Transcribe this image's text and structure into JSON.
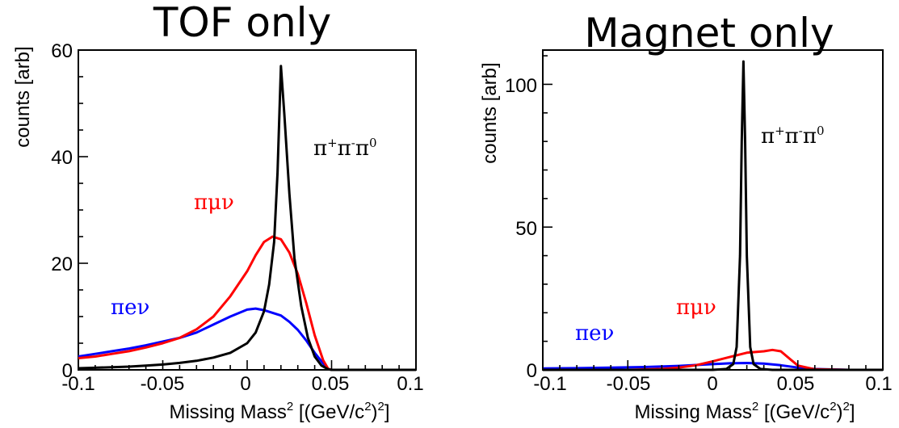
{
  "charts": [
    {
      "id": "tof",
      "title": "TOF only",
      "xlabel_main": "Missing Mass",
      "xlabel_sup": "2",
      "xlabel_rest": " [(GeV/c",
      "xlabel_sup2": "2",
      "xlabel_end": ")",
      "xlabel_sup3": "2",
      "xlabel_close": "]",
      "ylabel": "counts [arb]",
      "xticks": [
        "-0.1",
        "-0.05",
        "0",
        "0.05",
        "0.1"
      ],
      "yticks": [
        "0",
        "20",
        "40",
        "60"
      ],
      "annotations": {
        "pipipi": {
          "base": "π",
          "s1": "+",
          "mid1": "π",
          "s2": "-",
          "mid2": "π",
          "s3": "0"
        },
        "pimunu": "πμν",
        "pienu": "πeν"
      }
    },
    {
      "id": "magnet",
      "title": "Magnet only",
      "xlabel_main": "Missing Mass",
      "xlabel_sup": "2",
      "xlabel_rest": " [(GeV/c",
      "xlabel_sup2": "2",
      "xlabel_end": ")",
      "xlabel_sup3": "2",
      "xlabel_close": "]",
      "ylabel": "counts [arb]",
      "xticks": [
        "-0.1",
        "-0.05",
        "0",
        "0.05",
        "0.1"
      ],
      "yticks": [
        "0",
        "50",
        "100"
      ],
      "annotations": {
        "pipipi": {
          "base": "π",
          "s1": "+",
          "mid1": "π",
          "s2": "-",
          "mid2": "π",
          "s3": "0"
        },
        "pimunu": "πμν",
        "pienu": "πeν"
      }
    }
  ],
  "colors": {
    "pipipi": "#000000",
    "pimunu": "#ff0000",
    "pienu": "#0000ff"
  },
  "chart_data": [
    {
      "type": "line",
      "title": "TOF only",
      "xlabel": "Missing Mass² [(GeV/c²)²]",
      "ylabel": "counts [arb]",
      "xlim": [
        -0.1,
        0.1
      ],
      "ylim": [
        0,
        60
      ],
      "grid": false,
      "series": [
        {
          "name": "π+π-π0",
          "color": "#000000",
          "x": [
            -0.1,
            -0.09,
            -0.08,
            -0.07,
            -0.06,
            -0.05,
            -0.04,
            -0.03,
            -0.02,
            -0.01,
            0.0,
            0.005,
            0.01,
            0.013,
            0.016,
            0.018,
            0.02,
            0.022,
            0.025,
            0.028,
            0.032,
            0.036,
            0.04,
            0.044,
            0.048,
            0.05,
            0.06,
            0.08,
            0.1
          ],
          "y": [
            0.3,
            0.4,
            0.5,
            0.6,
            0.8,
            1.0,
            1.3,
            1.7,
            2.3,
            3.2,
            5.0,
            7.0,
            11.0,
            16.0,
            24.0,
            37.0,
            57.0,
            48.0,
            33.0,
            21.0,
            12.0,
            6.0,
            2.5,
            0.8,
            0.1,
            0,
            0,
            0,
            0
          ]
        },
        {
          "name": "πμν",
          "color": "#ff0000",
          "x": [
            -0.1,
            -0.09,
            -0.08,
            -0.07,
            -0.06,
            -0.05,
            -0.04,
            -0.03,
            -0.02,
            -0.01,
            0.0,
            0.005,
            0.01,
            0.015,
            0.02,
            0.025,
            0.03,
            0.035,
            0.04,
            0.045,
            0.048,
            0.05,
            0.06,
            0.08,
            0.1
          ],
          "y": [
            2.2,
            2.5,
            3.0,
            3.5,
            4.2,
            5.0,
            6.0,
            7.6,
            10.0,
            13.8,
            18.5,
            21.5,
            24.0,
            25.0,
            24.5,
            22.0,
            18.0,
            12.5,
            6.5,
            1.8,
            0.2,
            0,
            0,
            0,
            0
          ]
        },
        {
          "name": "πeν",
          "color": "#0000ff",
          "x": [
            -0.1,
            -0.09,
            -0.08,
            -0.07,
            -0.06,
            -0.05,
            -0.04,
            -0.03,
            -0.02,
            -0.01,
            0.0,
            0.005,
            0.01,
            0.02,
            0.025,
            0.03,
            0.035,
            0.04,
            0.045,
            0.048,
            0.05,
            0.06,
            0.08,
            0.1
          ],
          "y": [
            2.5,
            3.0,
            3.5,
            4.0,
            4.6,
            5.3,
            6.0,
            7.0,
            8.5,
            10.0,
            11.3,
            11.5,
            11.2,
            10.2,
            9.0,
            7.5,
            5.5,
            3.2,
            1.2,
            0.2,
            0,
            0,
            0,
            0
          ]
        }
      ]
    },
    {
      "type": "line",
      "title": "Magnet only",
      "xlabel": "Missing Mass² [(GeV/c²)²]",
      "ylabel": "counts [arb]",
      "xlim": [
        -0.1,
        0.1
      ],
      "ylim": [
        0,
        112
      ],
      "grid": false,
      "series": [
        {
          "name": "π+π-π0",
          "color": "#000000",
          "x": [
            -0.1,
            -0.05,
            0.0,
            0.008,
            0.012,
            0.014,
            0.016,
            0.017,
            0.018,
            0.019,
            0.02,
            0.022,
            0.024,
            0.028,
            0.035,
            0.05,
            0.1
          ],
          "y": [
            0,
            0,
            0,
            0.3,
            2.0,
            8.0,
            40.0,
            80.0,
            108.0,
            80.0,
            40.0,
            8.0,
            2.0,
            0.3,
            0,
            0,
            0
          ]
        },
        {
          "name": "πμν",
          "color": "#ff0000",
          "x": [
            -0.1,
            -0.05,
            -0.03,
            -0.02,
            -0.01,
            0.0,
            0.01,
            0.02,
            0.03,
            0.035,
            0.04,
            0.045,
            0.05,
            0.06,
            0.08,
            0.1
          ],
          "y": [
            0,
            0,
            0.3,
            0.8,
            1.6,
            3.0,
            4.5,
            6.0,
            6.5,
            7.0,
            6.5,
            4.0,
            1.5,
            0.2,
            0,
            0
          ]
        },
        {
          "name": "πeν",
          "color": "#0000ff",
          "x": [
            -0.1,
            -0.08,
            -0.06,
            -0.04,
            -0.02,
            0.0,
            0.01,
            0.02,
            0.03,
            0.04,
            0.05,
            0.06,
            0.08,
            0.1
          ],
          "y": [
            0.5,
            0.6,
            0.8,
            1.0,
            1.4,
            2.0,
            2.3,
            2.4,
            2.2,
            1.6,
            0.8,
            0.3,
            0,
            0
          ]
        }
      ]
    }
  ]
}
